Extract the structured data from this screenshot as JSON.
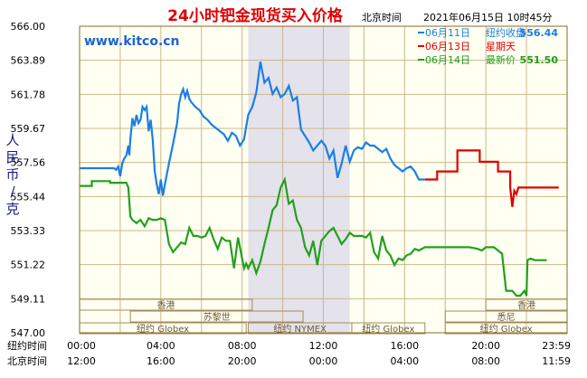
{
  "chart_data": {
    "type": "line",
    "title": "24小时钯金现货买入价格",
    "watermark": "www.kitco.cn",
    "timestamp": {
      "label": "北京时间",
      "value": "2021年06月15日 10时45分"
    },
    "ylabel": "人民币/克",
    "ylim": [
      547.0,
      566.0
    ],
    "yticks": [
      "566.00",
      "563.89",
      "561.78",
      "559.67",
      "557.56",
      "555.44",
      "553.33",
      "551.22",
      "549.11",
      "547.00"
    ],
    "x_rows": [
      {
        "label": "纽约时间",
        "ticks": [
          "00:00",
          "04:00",
          "08:00",
          "12:00",
          "16:00",
          "20:00",
          "23:59"
        ]
      },
      {
        "label": "北京时间",
        "ticks": [
          "12:00",
          "16:00",
          "20:00",
          "00:00",
          "04:00",
          "08:00",
          "11:59"
        ]
      }
    ],
    "xlim": [
      0,
      24
    ],
    "grid": true,
    "shaded_band": {
      "from": 8.3,
      "to": 13.3
    },
    "legend": [
      {
        "name": "06月11日",
        "caption": "纽约收盘",
        "value": "556.44",
        "color": "#1a7fe6"
      },
      {
        "name": "06月13日",
        "caption": "星期天",
        "value": "",
        "color": "#e00000"
      },
      {
        "name": "06月14日",
        "caption": "最新价",
        "value": "551.50",
        "color": "#22a01e"
      }
    ],
    "sessions": [
      {
        "label": "香港",
        "from": 0,
        "to": 8.5,
        "row": 0
      },
      {
        "label": "苏黎世",
        "from": 2.5,
        "to": 11.0,
        "row": 1
      },
      {
        "label": "纽约 Globex",
        "from": 0,
        "to": 8.2,
        "row": 2
      },
      {
        "label": "纽约 NYMEX",
        "from": 8.3,
        "to": 13.4,
        "row": 2
      },
      {
        "label": "纽约 Globex",
        "from": 13.4,
        "to": 17.0,
        "row": 2
      },
      {
        "label": "香港",
        "from": 20.0,
        "to": 24,
        "row": 0
      },
      {
        "label": "悉尼",
        "from": 18.0,
        "to": 24,
        "row": 1
      },
      {
        "label": "纽约 Globex",
        "from": 18.0,
        "to": 24,
        "row": 2
      }
    ],
    "series": [
      {
        "name": "06月11日",
        "color": "#1a7fe6",
        "x": [
          0,
          1.3,
          1.5,
          1.7,
          1.8,
          1.9,
          2.0,
          2.1,
          2.2,
          2.3,
          2.4,
          2.45,
          2.5,
          2.6,
          2.7,
          2.8,
          2.9,
          3.0,
          3.1,
          3.2,
          3.3,
          3.4,
          3.5,
          3.6,
          3.7,
          3.8,
          3.9,
          4.0,
          4.1,
          4.2,
          4.4,
          4.6,
          4.8,
          4.9,
          5.0,
          5.1,
          5.2,
          5.3,
          5.4,
          5.5,
          5.7,
          5.9,
          6.1,
          6.3,
          6.5,
          6.7,
          6.9,
          7.1,
          7.3,
          7.5,
          7.7,
          7.9,
          8.1,
          8.3,
          8.5,
          8.7,
          8.9,
          9.1,
          9.3,
          9.5,
          9.7,
          9.9,
          10.1,
          10.3,
          10.5,
          10.7,
          10.9,
          11.1,
          11.3,
          11.5,
          11.7,
          11.9,
          12.1,
          12.3,
          12.5,
          12.7,
          12.9,
          13.1,
          13.3,
          13.5,
          13.7,
          13.9,
          14.1,
          14.3,
          14.5,
          14.7,
          14.9,
          15.1,
          15.3,
          15.5,
          15.7,
          15.9,
          16.1,
          16.3,
          16.5,
          16.7,
          17.0
        ],
        "y": [
          557.2,
          557.2,
          557.2,
          557.2,
          557.1,
          557.3,
          556.7,
          557.5,
          557.8,
          558.0,
          558.6,
          558.0,
          559.0,
          560.3,
          559.8,
          560.5,
          560.0,
          560.2,
          561.0,
          560.8,
          561.0,
          559.5,
          560.2,
          559.0,
          557.0,
          556.2,
          555.6,
          556.5,
          555.5,
          556.2,
          557.5,
          558.7,
          560.0,
          561.2,
          561.8,
          562.1,
          561.6,
          562.0,
          561.5,
          561.3,
          561.0,
          560.8,
          560.4,
          560.2,
          559.9,
          559.7,
          559.5,
          559.3,
          558.9,
          559.4,
          559.2,
          558.6,
          559.0,
          560.5,
          561.0,
          561.9,
          563.8,
          562.5,
          562.8,
          561.8,
          562.2,
          561.6,
          561.8,
          562.3,
          561.4,
          561.6,
          559.6,
          559.2,
          558.8,
          558.3,
          558.6,
          558.9,
          558.6,
          557.8,
          558.3,
          556.6,
          557.5,
          558.6,
          557.6,
          558.3,
          558.5,
          558.4,
          558.8,
          558.6,
          558.6,
          558.4,
          558.2,
          558.4,
          557.8,
          557.4,
          557.2,
          557.0,
          557.2,
          557.3,
          557.0,
          556.5,
          556.5
        ]
      },
      {
        "name": "06月13日",
        "color": "#e00000",
        "x": [
          17.0,
          17.6,
          17.6,
          18.6,
          18.6,
          19.7,
          19.7,
          20.6,
          20.6,
          21.2,
          21.2,
          21.3,
          21.4,
          21.5,
          21.6,
          21.7,
          22.0,
          22.5,
          23.0,
          23.59
        ],
        "y": [
          556.5,
          556.5,
          557.0,
          557.0,
          558.3,
          558.3,
          557.6,
          557.6,
          557.0,
          557.0,
          556.0,
          554.8,
          555.8,
          555.6,
          556.0,
          556.0,
          556.0,
          556.0,
          556.0,
          556.0
        ]
      },
      {
        "name": "06月14日",
        "color": "#22a01e",
        "x": [
          0,
          0.6,
          0.6,
          1.5,
          1.5,
          2.3,
          2.4,
          2.5,
          2.6,
          2.8,
          3.0,
          3.2,
          3.4,
          3.6,
          3.8,
          4.0,
          4.2,
          4.4,
          4.6,
          4.8,
          5.0,
          5.2,
          5.4,
          5.6,
          5.8,
          6.0,
          6.2,
          6.4,
          6.6,
          6.8,
          7.0,
          7.2,
          7.4,
          7.6,
          7.8,
          8.0,
          8.1,
          8.2,
          8.3,
          8.5,
          8.7,
          8.9,
          9.1,
          9.3,
          9.5,
          9.7,
          9.9,
          10.1,
          10.3,
          10.5,
          10.7,
          10.9,
          11.1,
          11.3,
          11.5,
          11.7,
          11.9,
          12.1,
          12.3,
          12.5,
          12.7,
          12.9,
          13.1,
          13.3,
          13.5,
          13.7,
          13.9,
          14.1,
          14.3,
          14.5,
          14.7,
          14.9,
          15.1,
          15.3,
          15.5,
          15.7,
          15.9,
          16.1,
          16.3,
          16.5,
          16.7,
          17.0,
          17.5,
          18.0,
          18.5,
          18.8,
          19.2,
          19.6,
          19.8,
          20.0,
          20.4,
          20.8,
          21.0,
          21.1,
          21.3,
          21.5,
          21.7,
          21.9,
          22.0,
          22.05,
          22.2,
          22.4,
          22.6,
          23.0
        ],
        "y": [
          556.1,
          556.1,
          556.4,
          556.4,
          556.3,
          556.3,
          556.0,
          554.2,
          554.0,
          553.8,
          554.0,
          553.6,
          554.1,
          554.0,
          554.0,
          554.1,
          554.0,
          552.5,
          552.0,
          552.3,
          552.6,
          552.5,
          553.5,
          553.0,
          553.0,
          552.9,
          553.0,
          553.5,
          552.8,
          552.2,
          552.9,
          552.7,
          552.7,
          551.0,
          552.9,
          551.6,
          551.0,
          551.3,
          551.0,
          551.5,
          550.7,
          551.4,
          552.5,
          553.5,
          554.6,
          554.9,
          556.0,
          556.5,
          555.0,
          555.2,
          554.0,
          553.5,
          552.3,
          551.8,
          552.7,
          551.2,
          552.7,
          553.0,
          553.3,
          553.5,
          553.0,
          552.5,
          552.8,
          553.2,
          553.0,
          553.0,
          553.0,
          552.9,
          553.2,
          552.0,
          551.6,
          553.0,
          552.1,
          551.8,
          551.2,
          551.6,
          551.5,
          551.8,
          551.9,
          552.2,
          552.1,
          552.3,
          552.3,
          552.3,
          552.3,
          552.3,
          552.3,
          552.2,
          552.1,
          552.3,
          552.3,
          551.9,
          549.6,
          549.6,
          549.6,
          549.3,
          549.3,
          549.6,
          549.3,
          551.5,
          551.6,
          551.5,
          551.5,
          551.5
        ]
      }
    ]
  }
}
